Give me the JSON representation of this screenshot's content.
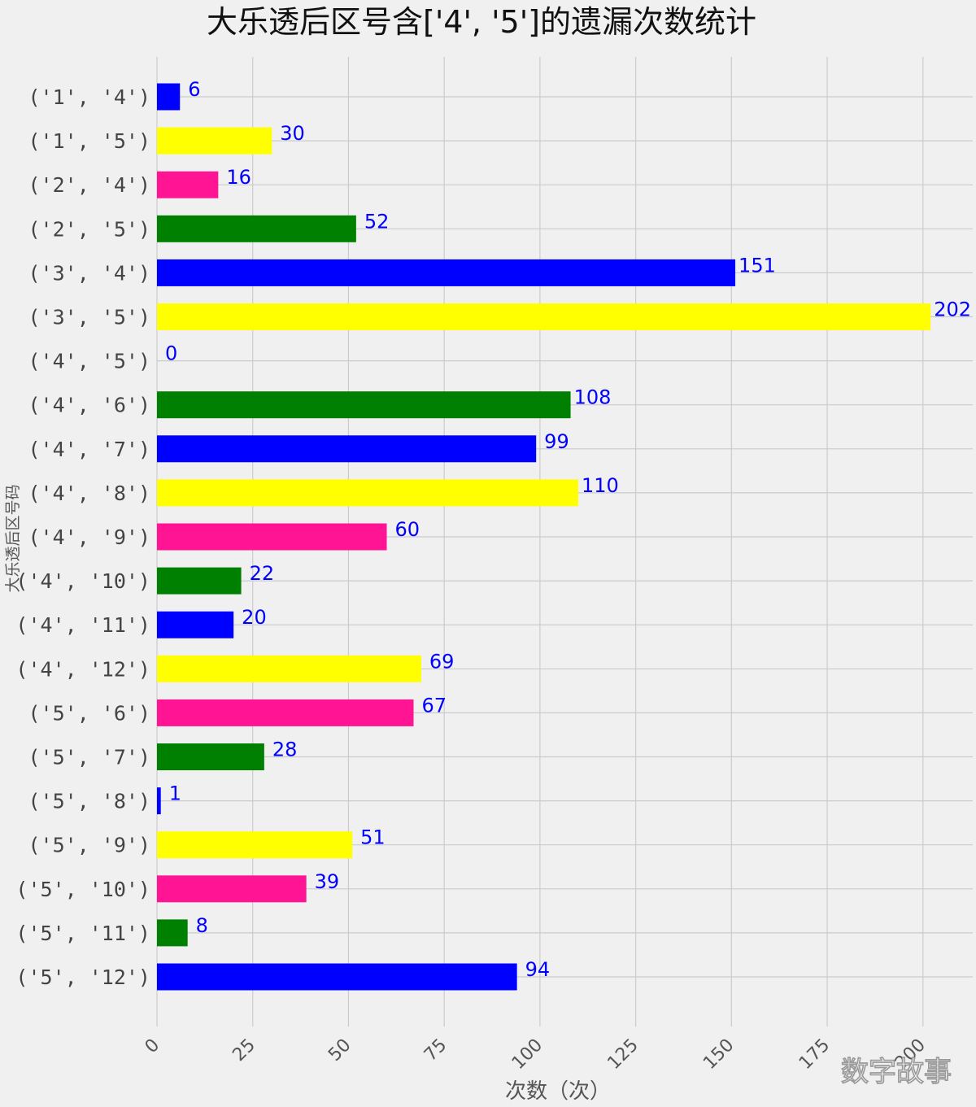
{
  "chart_data": {
    "type": "bar",
    "orientation": "horizontal",
    "title": "大乐透后区号含['4', '5']的遗漏次数统计",
    "xlabel": "次数（次）",
    "ylabel": "大乐透后区号码",
    "xlim": [
      0,
      213
    ],
    "xticks": [
      "0",
      "25",
      "50",
      "75",
      "100",
      "125",
      "150",
      "175",
      "200"
    ],
    "grid": true,
    "categories": [
      "('1', '4')",
      "('1', '5')",
      "('2', '4')",
      "('2', '5')",
      "('3', '4')",
      "('3', '5')",
      "('4', '5')",
      "('4', '6')",
      "('4', '7')",
      "('4', '8')",
      "('4', '9')",
      "('4', '10')",
      "('4', '11')",
      "('4', '12')",
      "('5', '6')",
      "('5', '7')",
      "('5', '8')",
      "('5', '9')",
      "('5', '10')",
      "('5', '11')",
      "('5', '12')"
    ],
    "values": [
      6,
      30,
      16,
      52,
      151,
      202,
      0,
      108,
      99,
      110,
      60,
      22,
      20,
      69,
      67,
      28,
      1,
      51,
      39,
      8,
      94
    ],
    "colors": [
      "#0000ff",
      "#ffff00",
      "#ff1493",
      "#008000",
      "#0000ff",
      "#ffff00",
      "#ff1493",
      "#008000",
      "#0000ff",
      "#ffff00",
      "#ff1493",
      "#008000",
      "#0000ff",
      "#ffff00",
      "#ff1493",
      "#008000",
      "#0000ff",
      "#ffff00",
      "#ff1493",
      "#008000",
      "#0000ff"
    ],
    "label_color": "#0000ff"
  },
  "watermark": "数字故事"
}
